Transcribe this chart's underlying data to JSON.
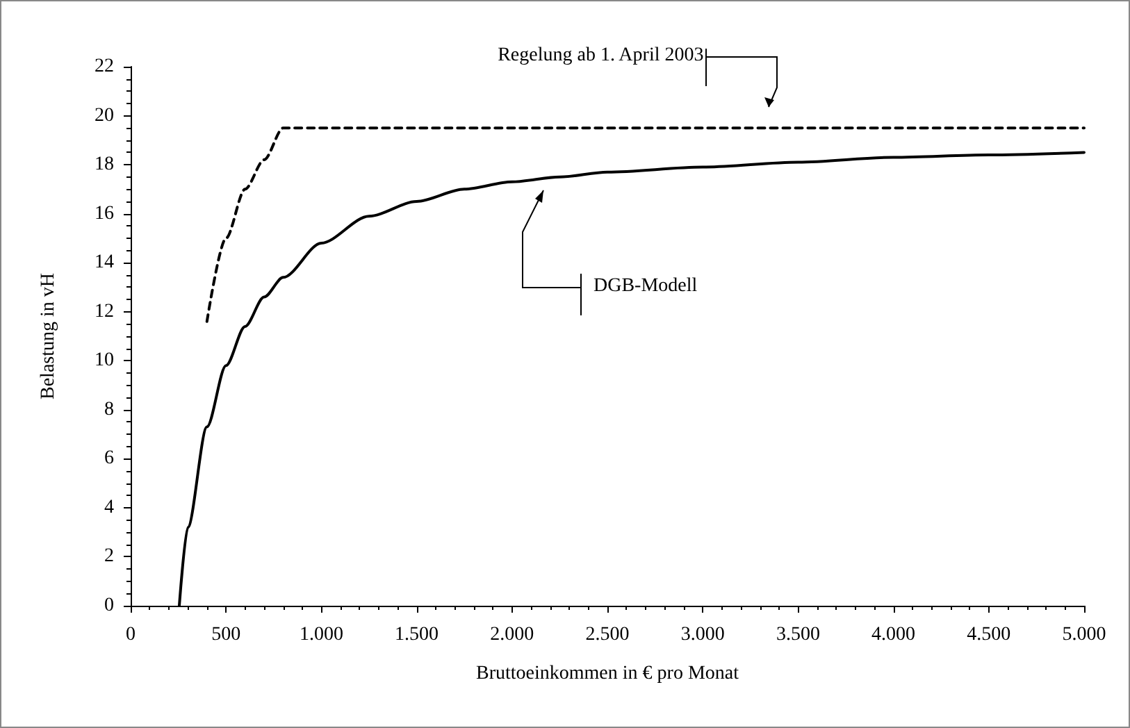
{
  "chart_data": {
    "type": "line",
    "xlabel": "Bruttoeinkommen in € pro Monat",
    "ylabel": "Belastung in vH",
    "xlim": [
      0,
      5000
    ],
    "ylim": [
      0,
      22
    ],
    "xticks": [
      0,
      500,
      {
        "value": 1000,
        "label": "1.000"
      },
      {
        "value": 1500,
        "label": "1.500"
      },
      {
        "value": 2000,
        "label": "2.000"
      },
      {
        "value": 2500,
        "label": "2.500"
      },
      {
        "value": 3000,
        "label": "3.000"
      },
      {
        "value": 3500,
        "label": "3.500"
      },
      {
        "value": 4000,
        "label": "4.000"
      },
      {
        "value": 4500,
        "label": "4.500"
      },
      {
        "value": 5000,
        "label": "5.000"
      }
    ],
    "yticks": [
      0,
      2,
      4,
      6,
      8,
      10,
      12,
      14,
      16,
      18,
      20,
      22
    ],
    "grid": false,
    "marker": "none",
    "series": [
      {
        "color": "#000000",
        "line_style": "solid",
        "x": [
          255,
          300,
          400,
          500,
          600,
          700,
          800,
          1000,
          1250,
          1500,
          1750,
          2000,
          2250,
          2500,
          3000,
          3500,
          4000,
          4500,
          5000
        ],
        "values": [
          0,
          3.2,
          7.3,
          9.8,
          11.4,
          12.6,
          13.4,
          14.8,
          15.9,
          16.5,
          17.0,
          17.3,
          17.5,
          17.7,
          17.9,
          18.1,
          18.3,
          18.4,
          18.5
        ]
      },
      {
        "color": "#000000",
        "line_style": "dashed",
        "x": [
          400,
          500,
          600,
          700,
          800,
          5000
        ],
        "values": [
          11.6,
          15.0,
          17.0,
          18.2,
          19.5,
          19.5
        ]
      }
    ],
    "annotations": [
      "Regelung ab 1. April 2003",
      "DGB-Modell"
    ]
  }
}
